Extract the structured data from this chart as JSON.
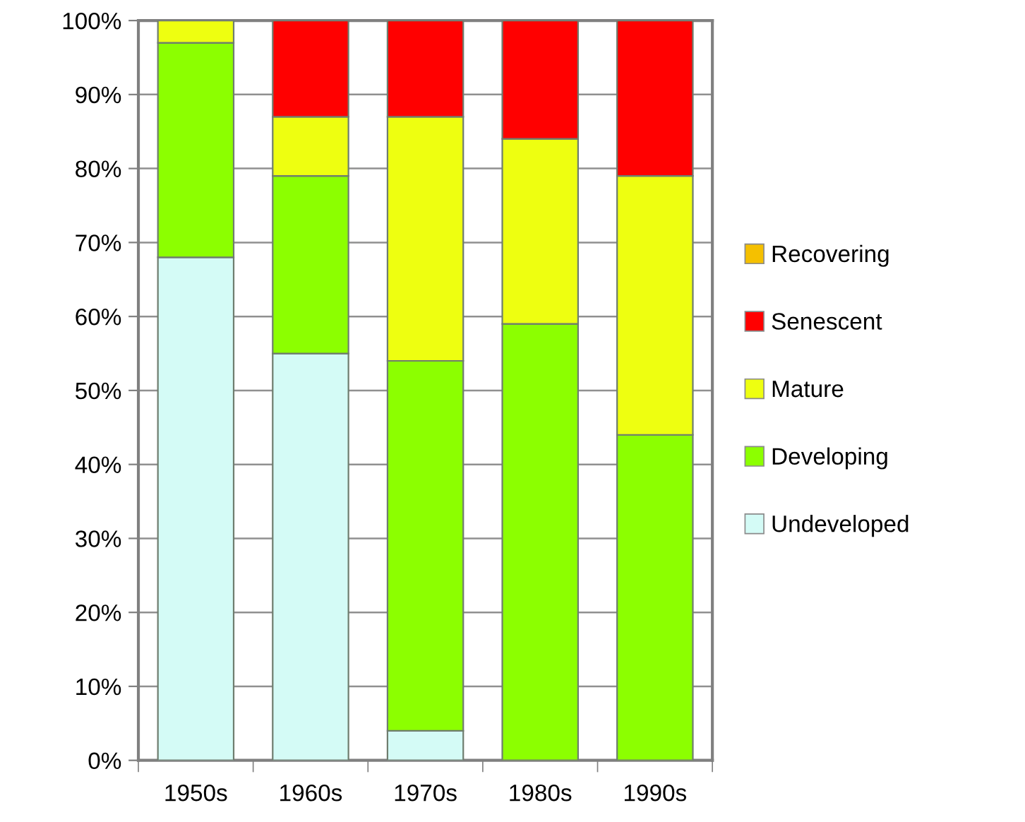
{
  "chart_data": {
    "type": "bar",
    "stacked": true,
    "categories": [
      "1950s",
      "1960s",
      "1970s",
      "1980s",
      "1990s"
    ],
    "series": [
      {
        "name": "Undeveloped",
        "color": "#d4fbf6",
        "values": [
          68,
          55,
          4,
          null,
          null
        ]
      },
      {
        "name": "Developing",
        "color": "#8cff00",
        "values": [
          29,
          24,
          50,
          59,
          44
        ]
      },
      {
        "name": "Mature",
        "color": "#eeff10",
        "values": [
          3,
          8,
          33,
          25,
          35
        ]
      },
      {
        "name": "Senescent",
        "color": "#ff0000",
        "values": [
          null,
          13,
          13,
          16,
          21
        ]
      },
      {
        "name": "Recovering",
        "color": "#f5c000",
        "values": [
          null,
          null,
          null,
          null,
          null
        ]
      }
    ],
    "ylim": [
      0,
      100
    ],
    "yticks": [
      {
        "value": 0,
        "label": "0%"
      },
      {
        "value": 10,
        "label": "10%"
      },
      {
        "value": 20,
        "label": "20%"
      },
      {
        "value": 30,
        "label": "30%"
      },
      {
        "value": 40,
        "label": "40%"
      },
      {
        "value": 50,
        "label": "50%"
      },
      {
        "value": 60,
        "label": "60%"
      },
      {
        "value": 70,
        "label": "70%"
      },
      {
        "value": 80,
        "label": "80%"
      },
      {
        "value": 90,
        "label": "90%"
      },
      {
        "value": 100,
        "label": "100%"
      }
    ],
    "grid": "y",
    "legend": "right"
  }
}
